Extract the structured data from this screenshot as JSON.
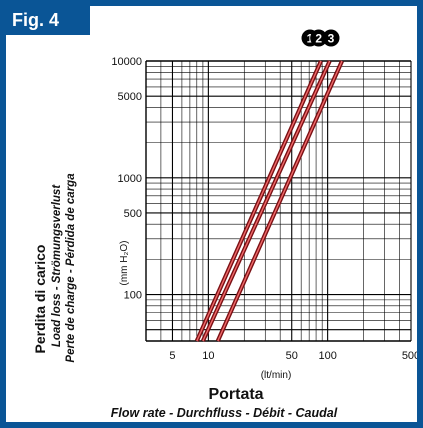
{
  "figure": {
    "label": "Fig. 4"
  },
  "chart_data": {
    "type": "line",
    "title": "",
    "xlabel": "Portata",
    "xlabel_sub": "Flow rate - Durchfluss - Débit - Caudal",
    "xunit": "(lt/min)",
    "ylabel": "Perdita di carico",
    "ylabel_sub1": "Load loss - Strömungsverlust",
    "ylabel_sub2": "Perte de charge - Pérdida de carga",
    "yunit": "(mm H₂O)",
    "x_scale": "log",
    "y_scale": "log",
    "xlim": [
      3,
      500
    ],
    "ylim": [
      40,
      10000
    ],
    "x_ticks": [
      5,
      10,
      50,
      100,
      500
    ],
    "y_ticks": [
      100,
      500,
      1000,
      5000,
      10000
    ],
    "grid": true,
    "series": [
      {
        "name": "1",
        "x": [
          8.0,
          88.0
        ],
        "y": [
          40,
          10000
        ]
      },
      {
        "name": "2",
        "x": [
          9.0,
          104.0
        ],
        "y": [
          40,
          10000
        ]
      },
      {
        "name": "3",
        "x": [
          12.0,
          132.0
        ],
        "y": [
          40,
          10000
        ]
      }
    ],
    "colors": {
      "line_outer": "#7a1014",
      "line_inner": "#f06a6a",
      "frame": "#0a5596",
      "grid": "#000000"
    }
  }
}
